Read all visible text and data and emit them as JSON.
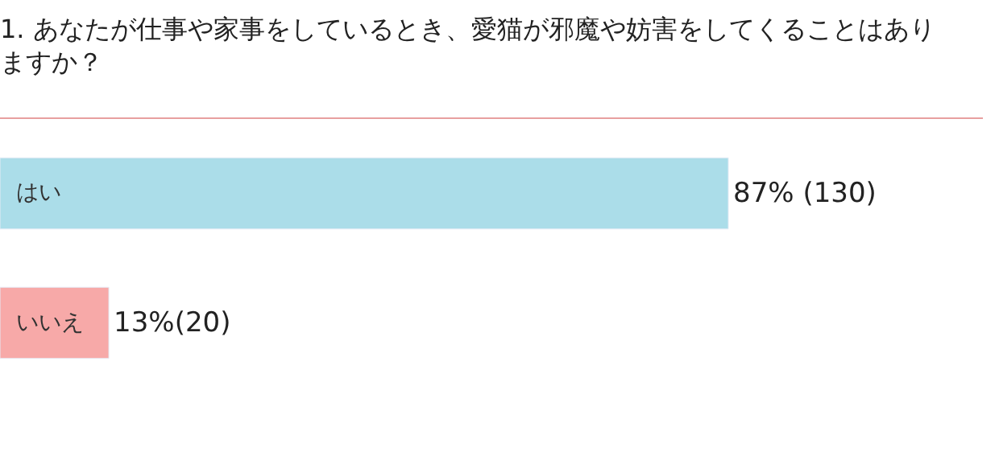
{
  "chart_data": {
    "type": "bar",
    "orientation": "horizontal",
    "title": "1. あなたが仕事や家事をしているとき、愛猫が邪魔や妨害をしてくることはありますか？",
    "categories": [
      "はい",
      "いいえ"
    ],
    "values": [
      87,
      13
    ],
    "colors": [
      "#abdde9",
      "#f7a9a8"
    ],
    "value_labels": [
      "87% (130)",
      "13%(20)"
    ]
  }
}
